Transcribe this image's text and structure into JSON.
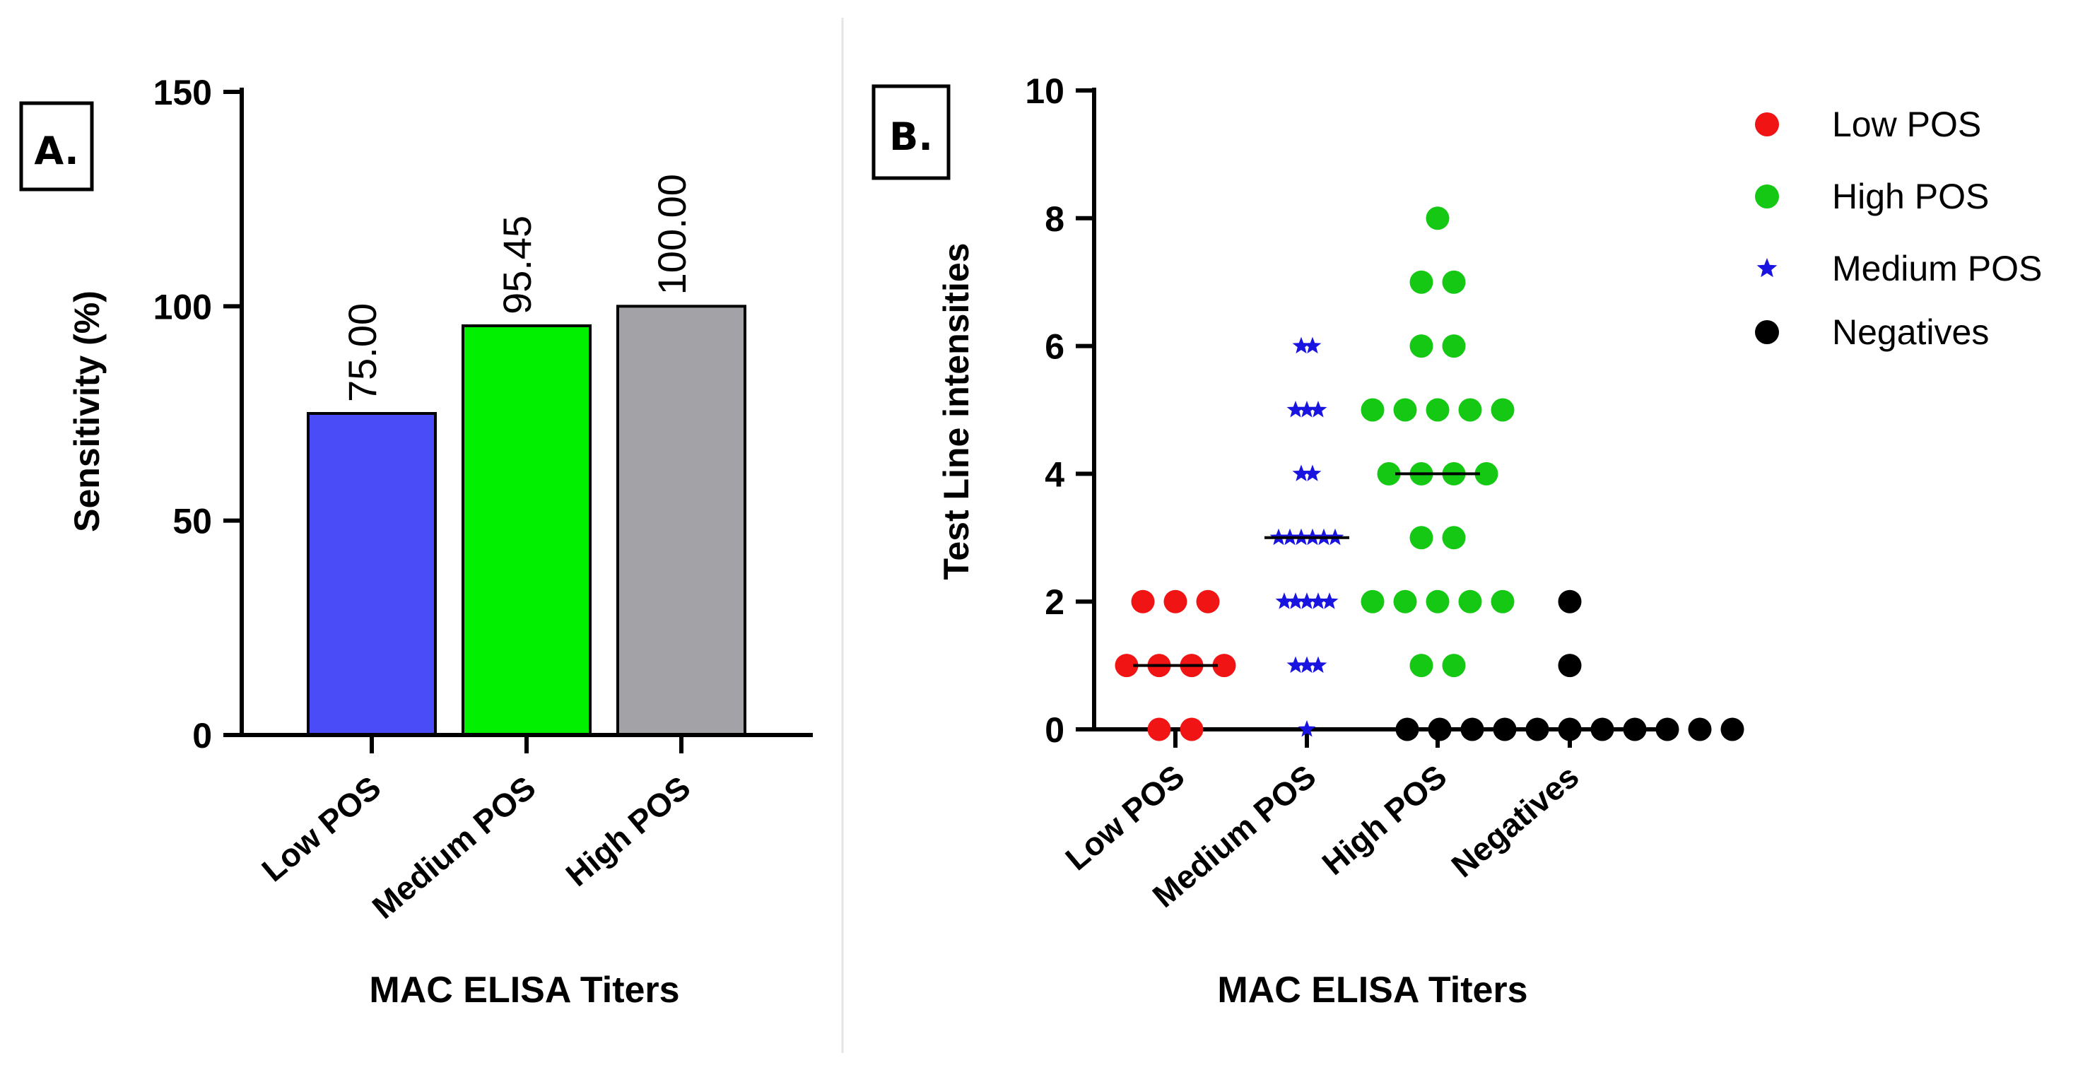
{
  "chart_data": [
    {
      "panel_label": "A.",
      "type": "bar",
      "categories": [
        "Low POS",
        "Medium POS",
        "High POS"
      ],
      "values": [
        75.0,
        95.45,
        100.0
      ],
      "data_labels": [
        "75.00",
        "95.45",
        "100.00"
      ],
      "colors": [
        "#4a4cf7",
        "#00f000",
        "#a3a3a7"
      ],
      "xlabel": "MAC ELISA Titers",
      "ylabel": "Sensitivity (%)",
      "ylim": [
        0,
        150
      ],
      "yticks": [
        0,
        50,
        100,
        150
      ],
      "ytick_labels": [
        "0",
        "50",
        "100",
        "150"
      ],
      "grid": false
    },
    {
      "panel_label": "B.",
      "type": "scatter",
      "categories": [
        "Low POS",
        "Medium POS",
        "High POS",
        "Negatives"
      ],
      "xlabel": "MAC ELISA Titers",
      "ylabel": "Test Line intensities",
      "ylim": [
        0,
        10
      ],
      "yticks": [
        0,
        2,
        4,
        6,
        8,
        10
      ],
      "ytick_labels": [
        "0",
        "2",
        "4",
        "6",
        "8",
        "10"
      ],
      "grid": false,
      "legend_position": "top-right",
      "series": [
        {
          "name": "Low POS",
          "category": "Low POS",
          "marker": "circle",
          "color": "#f01414",
          "values": [
            0,
            0,
            1,
            1,
            1,
            1,
            2,
            2,
            2
          ],
          "median": 1
        },
        {
          "name": "Medium POS",
          "category": "Medium POS",
          "marker": "star",
          "color": "#1a14e0",
          "values": [
            0,
            1,
            1,
            1,
            2,
            2,
            2,
            2,
            2,
            3,
            3,
            3,
            3,
            3,
            3,
            4,
            4,
            5,
            5,
            5,
            6,
            6
          ],
          "median": 3
        },
        {
          "name": "High POS",
          "category": "High POS",
          "marker": "circle",
          "color": "#14c814",
          "values": [
            1,
            1,
            2,
            2,
            2,
            2,
            2,
            3,
            3,
            4,
            4,
            4,
            4,
            5,
            5,
            5,
            5,
            5,
            6,
            6,
            7,
            7,
            8
          ],
          "median": 4
        },
        {
          "name": "Negatives",
          "category": "Negatives",
          "marker": "circle",
          "color": "#000000",
          "values": [
            0,
            0,
            0,
            0,
            0,
            0,
            0,
            0,
            0,
            0,
            0,
            1,
            2
          ],
          "median": 0
        }
      ],
      "legend": [
        {
          "label": "Low POS",
          "marker": "circle",
          "color": "#f01414"
        },
        {
          "label": "High POS",
          "marker": "circle",
          "color": "#14c814"
        },
        {
          "label": "Medium POS",
          "marker": "star",
          "color": "#1a14e0"
        },
        {
          "label": "Negatives",
          "marker": "circle",
          "color": "#000000"
        }
      ]
    }
  ]
}
